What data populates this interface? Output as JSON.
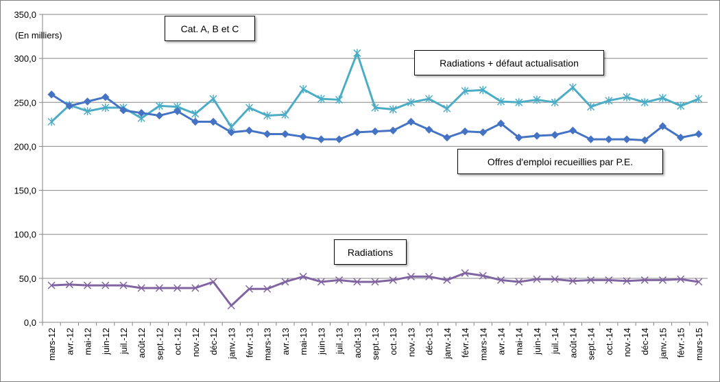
{
  "chart_data": {
    "type": "line",
    "title": "",
    "ylabel": "(En milliers)",
    "xlabel": "",
    "ylim": [
      0,
      350
    ],
    "y_ticks": [
      "0,0",
      "50,0",
      "100,0",
      "150,0",
      "200,0",
      "250,0",
      "300,0",
      "350,0"
    ],
    "y_tick_values": [
      0,
      50,
      100,
      150,
      200,
      250,
      300,
      350
    ],
    "grid": "horizontal",
    "categories": [
      "mars-12",
      "avr.-12",
      "mai-12",
      "juin-12",
      "juil.-12",
      "août-12",
      "sept.-12",
      "oct.-12",
      "nov.-12",
      "déc-12",
      "janv.-13",
      "févr.-13",
      "mars-13",
      "avr.-13",
      "mai-13",
      "juin-13",
      "juil.-13",
      "août-13",
      "sept.-13",
      "oct.-13",
      "nov.-13",
      "déc-13",
      "janv.-14",
      "févr.-14",
      "mars-14",
      "avr.-14",
      "mai-14",
      "juin-14",
      "juil.-14",
      "août-14",
      "sept.-14",
      "oct.-14",
      "nov.-14",
      "déc-14",
      "janv.-15",
      "févr.-15",
      "mars-15"
    ],
    "annotations": {
      "category_note": "Cat. A, B et C"
    },
    "series": [
      {
        "name": "Radiations + défaut actualisation",
        "color": "#4bacc6",
        "marker": "asterisk",
        "values": [
          228,
          247,
          240,
          244,
          244,
          232,
          246,
          245,
          237,
          254,
          222,
          244,
          235,
          236,
          265,
          254,
          253,
          306,
          244,
          242,
          250,
          254,
          243,
          263,
          264,
          251,
          250,
          253,
          250,
          267,
          245,
          252,
          256,
          250,
          255,
          246,
          254
        ]
      },
      {
        "name": "Offres d'emploi recueillies par P.E.",
        "color": "#4472c4",
        "marker": "diamond",
        "values": [
          259,
          246,
          251,
          256,
          241,
          238,
          235,
          240,
          228,
          228,
          216,
          218,
          214,
          214,
          211,
          208,
          208,
          216,
          217,
          218,
          228,
          219,
          210,
          217,
          216,
          226,
          210,
          212,
          213,
          218,
          208,
          208,
          208,
          207,
          223,
          210,
          214
        ]
      },
      {
        "name": "Radiations",
        "color": "#8064a2",
        "marker": "x",
        "values": [
          42,
          43,
          42,
          42,
          42,
          39,
          39,
          39,
          39,
          46,
          19,
          38,
          38,
          46,
          52,
          46,
          48,
          46,
          46,
          48,
          52,
          52,
          48,
          56,
          53,
          48,
          46,
          49,
          49,
          47,
          48,
          48,
          47,
          48,
          48,
          49,
          46
        ]
      }
    ]
  }
}
